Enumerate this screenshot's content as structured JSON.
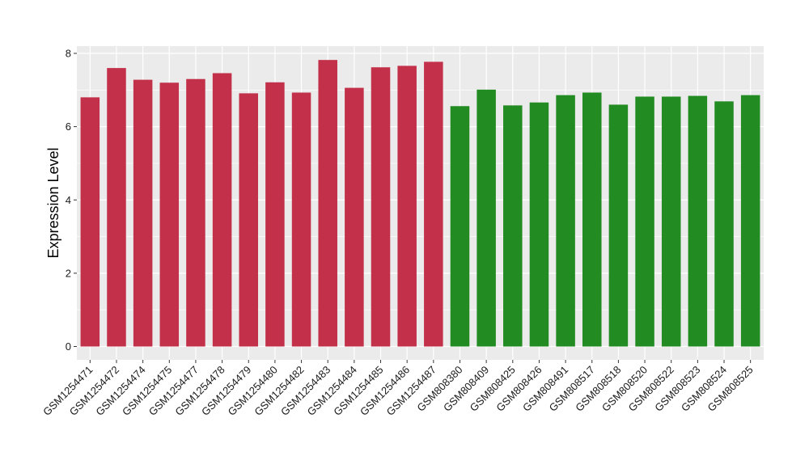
{
  "chart_data": {
    "type": "bar",
    "title": "",
    "xlabel": "",
    "ylabel": "Expression Level",
    "ylim": [
      0,
      8.2
    ],
    "yticks": [
      0,
      2,
      4,
      6,
      8
    ],
    "grid": true,
    "legend": "none",
    "colors": {
      "group1": "#C3304A",
      "group2": "#228B22",
      "panel": "#EBEBEB",
      "gridline": "#FFFFFF"
    },
    "categories": [
      "GSM1254471",
      "GSM1254472",
      "GSM1254474",
      "GSM1254475",
      "GSM1254477",
      "GSM1254478",
      "GSM1254479",
      "GSM1254480",
      "GSM1254482",
      "GSM1254483",
      "GSM1254484",
      "GSM1254485",
      "GSM1254486",
      "GSM1254487",
      "GSM808380",
      "GSM808409",
      "GSM808425",
      "GSM808426",
      "GSM808491",
      "GSM808517",
      "GSM808518",
      "GSM808520",
      "GSM808522",
      "GSM808523",
      "GSM808524",
      "GSM808525"
    ],
    "values": [
      6.8,
      7.6,
      7.28,
      7.2,
      7.3,
      7.46,
      6.91,
      7.21,
      6.93,
      7.82,
      7.06,
      7.62,
      7.66,
      7.77,
      6.56,
      7.01,
      6.58,
      6.66,
      6.86,
      6.93,
      6.6,
      6.82,
      6.82,
      6.84,
      6.69,
      6.86
    ],
    "groups": [
      1,
      1,
      1,
      1,
      1,
      1,
      1,
      1,
      1,
      1,
      1,
      1,
      1,
      1,
      2,
      2,
      2,
      2,
      2,
      2,
      2,
      2,
      2,
      2,
      2,
      2
    ]
  }
}
